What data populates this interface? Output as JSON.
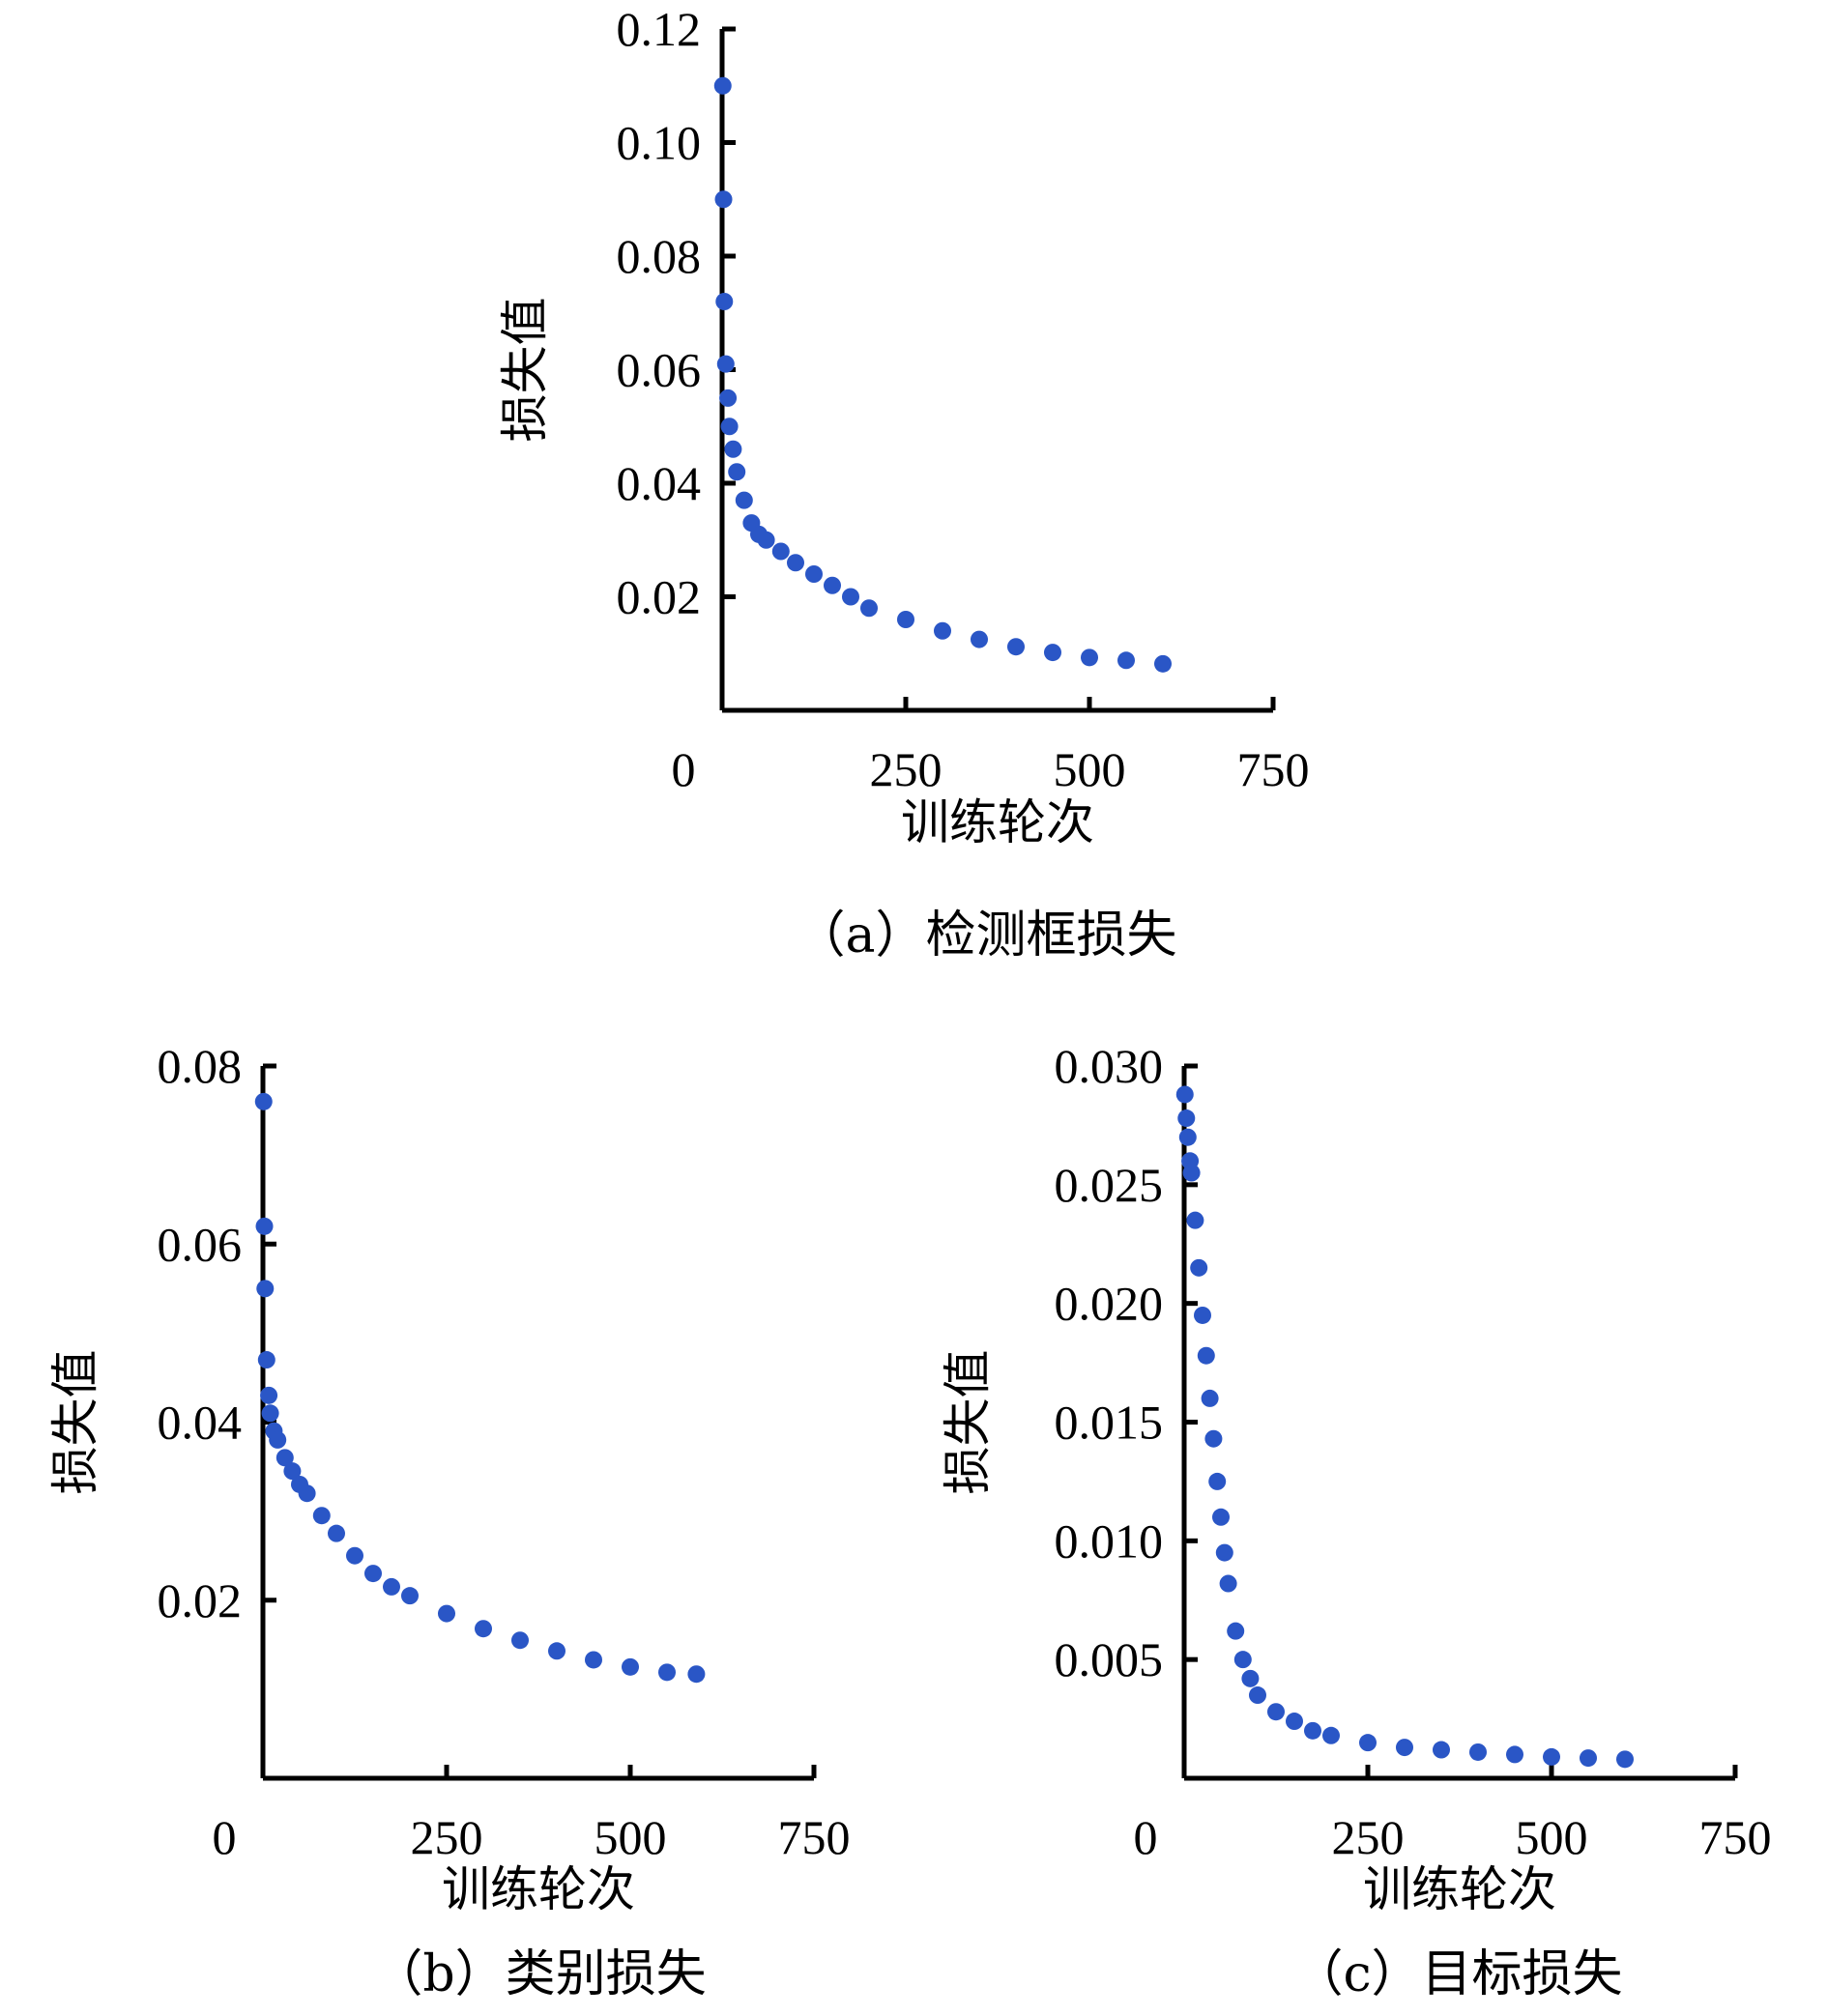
{
  "chart_data": [
    {
      "type": "scatter",
      "caption": "（a）检测框损失",
      "xlabel": "训练轮次",
      "ylabel": "损失值",
      "xlim": [
        0,
        750
      ],
      "ylim": [
        0,
        0.12
      ],
      "x_ticks": [
        "0",
        "250",
        "500",
        "750"
      ],
      "y_ticks": [
        "0.12",
        "0.10",
        "0.08",
        "0.06",
        "0.04",
        "0.02"
      ],
      "grid": false,
      "legend": "none",
      "color": "#2a56c6",
      "series": [
        {
          "x": [
            1,
            2,
            3,
            5,
            8,
            10,
            15,
            20,
            30,
            40,
            50,
            60,
            80,
            100,
            125,
            150,
            175,
            200,
            250,
            300,
            350,
            400,
            450,
            500,
            550,
            600
          ],
          "y": [
            0.11,
            0.09,
            0.072,
            0.061,
            0.055,
            0.05,
            0.046,
            0.042,
            0.037,
            0.033,
            0.031,
            0.03,
            0.028,
            0.026,
            0.024,
            0.022,
            0.02,
            0.018,
            0.016,
            0.014,
            0.0125,
            0.0112,
            0.0102,
            0.0093,
            0.0088,
            0.0082
          ]
        }
      ]
    },
    {
      "type": "scatter",
      "caption": "（b）类别损失",
      "xlabel": "训练轮次",
      "ylabel": "损失值",
      "xlim": [
        0,
        750
      ],
      "ylim": [
        0,
        0.08
      ],
      "x_ticks": [
        "0",
        "250",
        "500",
        "750"
      ],
      "y_ticks": [
        "0.08",
        "0.06",
        "0.04",
        "0.02"
      ],
      "grid": false,
      "legend": "none",
      "color": "#2a56c6",
      "series": [
        {
          "x": [
            1,
            2,
            3,
            5,
            8,
            10,
            15,
            20,
            30,
            40,
            50,
            60,
            80,
            100,
            125,
            150,
            175,
            200,
            250,
            300,
            350,
            400,
            450,
            500,
            550,
            590
          ],
          "y": [
            0.076,
            0.062,
            0.055,
            0.047,
            0.043,
            0.041,
            0.039,
            0.038,
            0.036,
            0.0345,
            0.033,
            0.032,
            0.0295,
            0.0275,
            0.025,
            0.023,
            0.0215,
            0.0205,
            0.0185,
            0.0168,
            0.0155,
            0.0143,
            0.0133,
            0.0125,
            0.0119,
            0.0117
          ]
        }
      ]
    },
    {
      "type": "scatter",
      "caption": "（c）目标损失",
      "xlabel": "训练轮次",
      "ylabel": "损失值",
      "xlim": [
        0,
        750
      ],
      "ylim": [
        0,
        0.03
      ],
      "x_ticks": [
        "0",
        "250",
        "500",
        "750"
      ],
      "y_ticks": [
        "0.030",
        "0.025",
        "0.020",
        "0.015",
        "0.010",
        "0.005"
      ],
      "grid": false,
      "legend": "none",
      "color": "#2a56c6",
      "series": [
        {
          "x": [
            1,
            3,
            5,
            8,
            10,
            15,
            20,
            25,
            30,
            35,
            40,
            45,
            50,
            55,
            60,
            70,
            80,
            90,
            100,
            125,
            150,
            175,
            200,
            250,
            300,
            350,
            400,
            450,
            500,
            550,
            600
          ],
          "y": [
            0.0288,
            0.0278,
            0.027,
            0.026,
            0.0255,
            0.0235,
            0.0215,
            0.0195,
            0.0178,
            0.016,
            0.0143,
            0.0125,
            0.011,
            0.0095,
            0.0082,
            0.0062,
            0.005,
            0.0042,
            0.0035,
            0.0028,
            0.0024,
            0.002,
            0.0018,
            0.0015,
            0.0013,
            0.0012,
            0.0011,
            0.001,
            0.0009,
            0.00085,
            0.0008
          ]
        }
      ]
    }
  ]
}
